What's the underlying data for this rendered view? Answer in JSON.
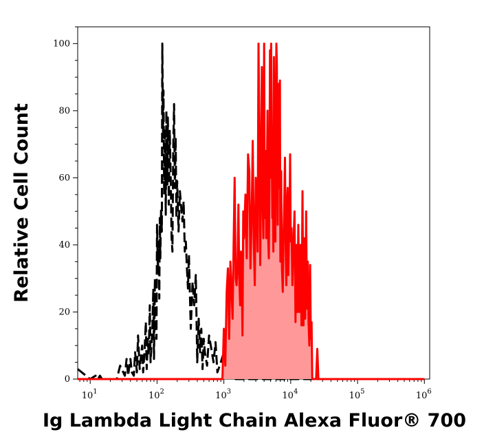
{
  "chart_data": {
    "type": "area",
    "xlabel": "Ig Lambda Light Chain Alexa Fluor® 700",
    "ylabel": "Relative Cell Count",
    "x_scale": "log",
    "xlim": [
      6.5,
      1200000
    ],
    "ylim": [
      0,
      105
    ],
    "x_ticks": [
      {
        "value": 10,
        "base": "10",
        "exp": "1"
      },
      {
        "value": 100,
        "base": "10",
        "exp": "2"
      },
      {
        "value": 1000,
        "base": "10",
        "exp": "3"
      },
      {
        "value": 10000,
        "base": "10",
        "exp": "4"
      },
      {
        "value": 100000,
        "base": "10",
        "exp": "5"
      },
      {
        "value": 1000000,
        "base": "10",
        "exp": "6"
      }
    ],
    "y_ticks": [
      {
        "value": 0,
        "label": "0"
      },
      {
        "value": 20,
        "label": "20"
      },
      {
        "value": 40,
        "label": "40"
      },
      {
        "value": 60,
        "label": "60"
      },
      {
        "value": 80,
        "label": "80"
      },
      {
        "value": 100,
        "label": "100"
      }
    ],
    "series": [
      {
        "style": "dashed",
        "color": "#000000",
        "fill": "none",
        "x": [
          6.5,
          10,
          12,
          13,
          14,
          15,
          20,
          25,
          28,
          33,
          35,
          37,
          38,
          40,
          42,
          45,
          47,
          50,
          52,
          55,
          57,
          60,
          62,
          65,
          68,
          70,
          73,
          75,
          78,
          80,
          82,
          85,
          88,
          90,
          93,
          95,
          98,
          100,
          103,
          105,
          108,
          110,
          112,
          115,
          118,
          120,
          123,
          125,
          128,
          130,
          133,
          135,
          138,
          140,
          143,
          145,
          148,
          150,
          155,
          160,
          165,
          170,
          175,
          180,
          185,
          190,
          195,
          200,
          210,
          220,
          230,
          240,
          250,
          260,
          270,
          280,
          290,
          300,
          320,
          340,
          360,
          380,
          400,
          420,
          440,
          460,
          480,
          500,
          520,
          560,
          600,
          650,
          700,
          750,
          800,
          900,
          1000,
          1100,
          1500,
          3000,
          1000000
        ],
        "y": [
          3,
          0,
          1,
          0,
          1,
          0,
          0,
          0,
          4,
          1,
          6,
          1,
          3,
          6,
          2,
          1,
          8,
          2,
          13,
          3,
          6,
          10,
          2,
          8,
          17,
          3,
          12,
          7,
          22,
          5,
          9,
          14,
          27,
          6,
          30,
          18,
          12,
          46,
          32,
          41,
          24,
          48,
          36,
          51,
          44,
          100,
          72,
          86,
          55,
          75,
          68,
          49,
          80,
          62,
          58,
          78,
          67,
          52,
          74,
          60,
          42,
          38,
          69,
          82,
          57,
          72,
          48,
          59,
          44,
          56,
          51,
          47,
          53,
          38,
          41,
          33,
          27,
          37,
          15,
          29,
          22,
          31,
          5,
          18,
          8,
          15,
          3,
          12,
          8,
          4,
          13,
          9,
          5,
          11,
          2,
          5,
          8,
          2,
          0,
          0,
          0
        ]
      },
      {
        "style": "solid",
        "color": "#ff0000",
        "fill": "#ff9999",
        "x": [
          6.5,
          950,
          1000,
          1050,
          1100,
          1150,
          1200,
          1250,
          1300,
          1350,
          1400,
          1450,
          1500,
          1550,
          1600,
          1650,
          1700,
          1750,
          1800,
          1850,
          1900,
          1950,
          2000,
          2100,
          2200,
          2300,
          2400,
          2500,
          2600,
          2700,
          2800,
          2900,
          3000,
          3100,
          3200,
          3300,
          3400,
          3500,
          3600,
          3700,
          3800,
          3900,
          4000,
          4100,
          4200,
          4300,
          4400,
          4500,
          4600,
          4700,
          4800,
          4900,
          5000,
          5100,
          5200,
          5300,
          5400,
          5500,
          5600,
          5700,
          5800,
          5900,
          6000,
          6100,
          6200,
          6300,
          6400,
          6500,
          6600,
          6700,
          6800,
          6900,
          7000,
          7100,
          7200,
          7300,
          7400,
          7600,
          7800,
          8000,
          8200,
          8400,
          8600,
          8800,
          9000,
          9200,
          9400,
          9600,
          9800,
          10000,
          10300,
          10600,
          11000,
          11400,
          11800,
          12200,
          12600,
          13000,
          13500,
          14000,
          14500,
          15000,
          15500,
          16000,
          16500,
          17000,
          17500,
          18000,
          18500,
          19000,
          19500,
          20000,
          20500,
          21000,
          22000,
          23000,
          24000,
          25000,
          26000,
          27000,
          28000,
          1000000
        ],
        "y": [
          0,
          0,
          15,
          4,
          26,
          33,
          12,
          35,
          27,
          18,
          40,
          60,
          30,
          28,
          34,
          52,
          30,
          22,
          38,
          33,
          13,
          50,
          42,
          55,
          36,
          67,
          62,
          33,
          48,
          71,
          42,
          28,
          60,
          52,
          38,
          100,
          74,
          34,
          61,
          93,
          52,
          42,
          100,
          48,
          68,
          42,
          58,
          80,
          42,
          36,
          58,
          98,
          60,
          100,
          72,
          48,
          58,
          38,
          96,
          60,
          82,
          41,
          86,
          100,
          94,
          68,
          46,
          88,
          73,
          67,
          57,
          89,
          35,
          50,
          62,
          45,
          33,
          26,
          42,
          52,
          66,
          40,
          28,
          52,
          57,
          31,
          41,
          47,
          67,
          41,
          45,
          28,
          40,
          50,
          17,
          40,
          20,
          46,
          20,
          40,
          16,
          56,
          16,
          42,
          18,
          50,
          21,
          35,
          17,
          10,
          34,
          12,
          17,
          0,
          0,
          0,
          0,
          9,
          0,
          0,
          0,
          0
        ]
      }
    ]
  }
}
